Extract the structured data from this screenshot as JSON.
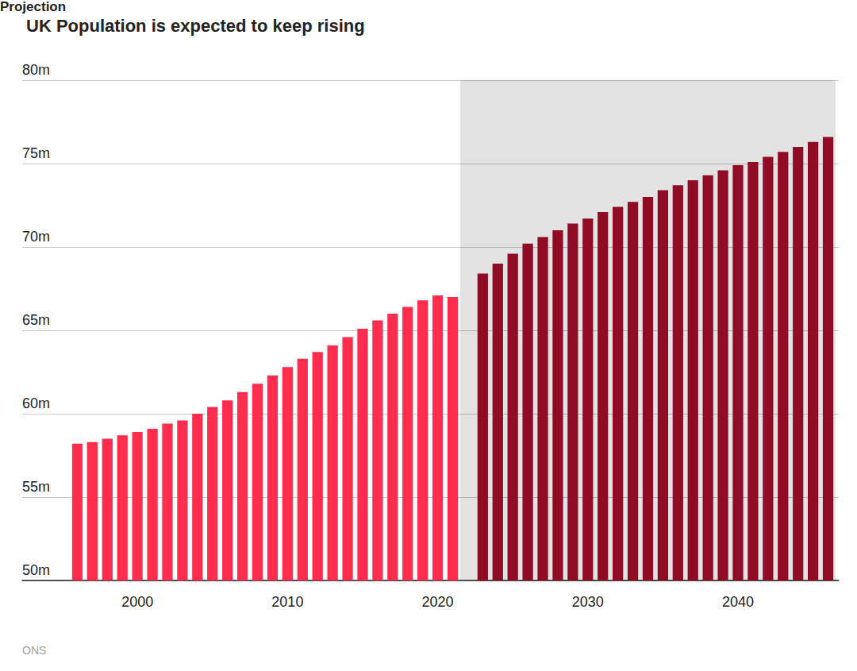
{
  "chart_data": {
    "type": "bar",
    "title": "UK Population is expected to keep rising",
    "source": "ONS",
    "categories": [
      null,
      null,
      null,
      null,
      "2000",
      null,
      null,
      null,
      null,
      null,
      null,
      null,
      null,
      null,
      "2010",
      null,
      null,
      null,
      null,
      null,
      null,
      null,
      null,
      null,
      "2020",
      null,
      null,
      null,
      null,
      null,
      null,
      null,
      null,
      null,
      "2030",
      null,
      null,
      null,
      null,
      null,
      null,
      null,
      null,
      null,
      "2040",
      null,
      null,
      null,
      null,
      null,
      null
    ],
    "values": [
      58.2,
      58.3,
      58.5,
      58.7,
      58.9,
      59.1,
      59.4,
      59.6,
      60.0,
      60.4,
      60.8,
      61.3,
      61.8,
      62.3,
      62.8,
      63.3,
      63.7,
      64.1,
      64.6,
      65.1,
      65.6,
      66.0,
      66.4,
      66.8,
      67.1,
      67.0,
      null,
      68.4,
      69.0,
      69.6,
      70.2,
      70.6,
      71.0,
      71.4,
      71.7,
      72.1,
      72.4,
      72.7,
      73.0,
      73.4,
      73.7,
      74.0,
      74.3,
      74.6,
      74.9,
      75.1,
      75.4,
      75.7,
      76.0,
      76.3,
      76.6
    ],
    "colors": [
      "#fe2c4d",
      "#fe2c4d",
      "#fe2c4d",
      "#fe2c4d",
      "#fe2c4d",
      "#fe2c4d",
      "#fe2c4d",
      "#fe2c4d",
      "#fe2c4d",
      "#fe2c4d",
      "#fe2c4d",
      "#fe2c4d",
      "#fe2c4d",
      "#fe2c4d",
      "#fe2c4d",
      "#fe2c4d",
      "#fe2c4d",
      "#fe2c4d",
      "#fe2c4d",
      "#fe2c4d",
      "#fe2c4d",
      "#fe2c4d",
      "#fe2c4d",
      "#fe2c4d",
      "#fe2c4d",
      "#fe2c4d",
      "#900c25",
      "#900c25",
      "#900c25",
      "#900c25",
      "#900c25",
      "#900c25",
      "#900c25",
      "#900c25",
      "#900c25",
      "#900c25",
      "#900c25",
      "#900c25",
      "#900c25",
      "#900c25",
      "#900c25",
      "#900c25",
      "#900c25",
      "#900c25",
      "#900c25",
      "#900c25",
      "#900c25",
      "#900c25",
      "#900c25",
      "#900c25",
      "#900c25"
    ],
    "ylim": [
      50,
      80
    ],
    "yticks": [
      {
        "value": 50,
        "label": "50m"
      },
      {
        "value": 55,
        "label": "55m"
      },
      {
        "value": 60,
        "label": "60m"
      },
      {
        "value": 65,
        "label": "65m"
      },
      {
        "value": 70,
        "label": "70m"
      },
      {
        "value": 75,
        "label": "75m"
      },
      {
        "value": 80,
        "label": "80m"
      }
    ],
    "grid": true,
    "annotations": [
      {
        "text": "Projection",
        "from": 26,
        "to": 50
      }
    ]
  }
}
